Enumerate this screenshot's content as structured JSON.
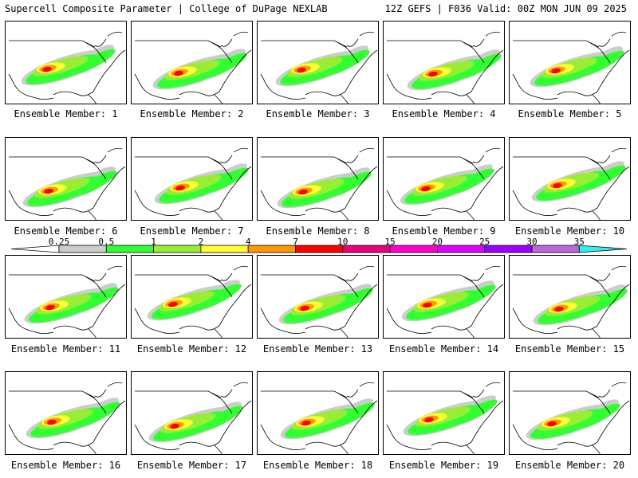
{
  "header": {
    "left": "Supercell Composite Parameter | College of DuPage NEXLAB",
    "right": "12Z GEFS | F036 Valid: 00Z MON JUN 09 2025"
  },
  "colorbar": {
    "ticks": [
      "0.25",
      "0.5",
      "1",
      "2",
      "4",
      "7",
      "10",
      "15",
      "20",
      "25",
      "30",
      "35"
    ],
    "colors": [
      "#cccccc",
      "#32ff32",
      "#99ee33",
      "#ffff33",
      "#ff9900",
      "#ff0000",
      "#e8007a",
      "#ff00cc",
      "#dd00ff",
      "#9900ff",
      "#bb66dd",
      "#33eeee"
    ]
  },
  "members": [
    {
      "label": "Ensemble Member: 1"
    },
    {
      "label": "Ensemble Member: 2"
    },
    {
      "label": "Ensemble Member: 3"
    },
    {
      "label": "Ensemble Member: 4"
    },
    {
      "label": "Ensemble Member: 5"
    },
    {
      "label": "Ensemble Member: 6"
    },
    {
      "label": "Ensemble Member: 7"
    },
    {
      "label": "Ensemble Member: 8"
    },
    {
      "label": "Ensemble Member: 9"
    },
    {
      "label": "Ensemble Member: 10"
    },
    {
      "label": "Ensemble Member: 11"
    },
    {
      "label": "Ensemble Member: 12"
    },
    {
      "label": "Ensemble Member: 13"
    },
    {
      "label": "Ensemble Member: 14"
    },
    {
      "label": "Ensemble Member: 15"
    },
    {
      "label": "Ensemble Member: 16"
    },
    {
      "label": "Ensemble Member: 17"
    },
    {
      "label": "Ensemble Member: 18"
    },
    {
      "label": "Ensemble Member: 19"
    },
    {
      "label": "Ensemble Member: 20"
    }
  ]
}
